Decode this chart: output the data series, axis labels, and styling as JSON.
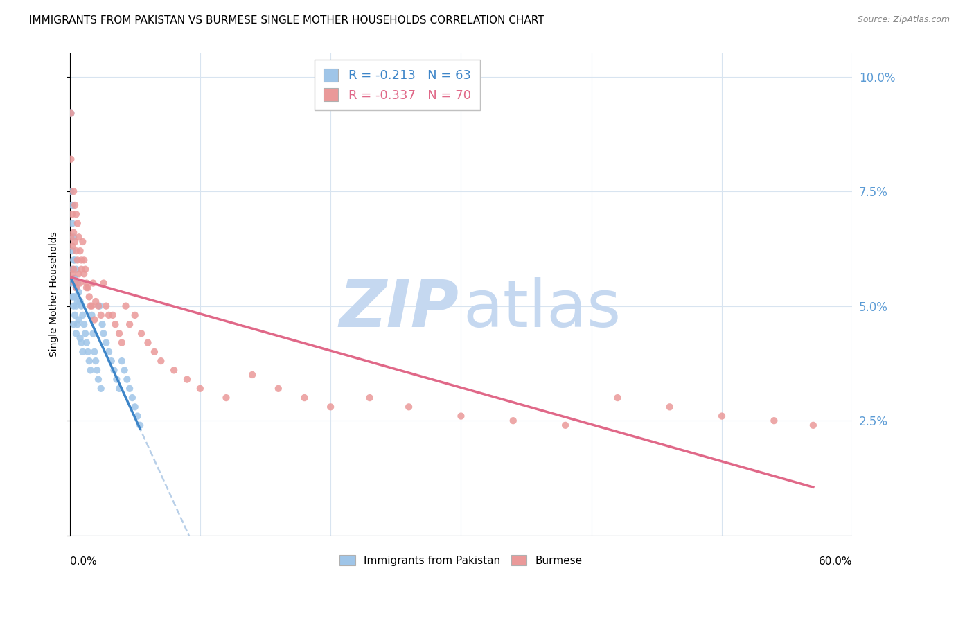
{
  "title": "IMMIGRANTS FROM PAKISTAN VS BURMESE SINGLE MOTHER HOUSEHOLDS CORRELATION CHART",
  "source": "Source: ZipAtlas.com",
  "ylabel": "Single Mother Households",
  "yticks": [
    0.0,
    0.025,
    0.05,
    0.075,
    0.1
  ],
  "ytick_labels": [
    "",
    "2.5%",
    "5.0%",
    "7.5%",
    "10.0%"
  ],
  "xlim": [
    0.0,
    0.6
  ],
  "ylim": [
    0.0,
    0.105
  ],
  "r1": -0.213,
  "n1": 63,
  "r2": -0.337,
  "n2": 70,
  "color_pakistan": "#9fc5e8",
  "color_burmese": "#ea9999",
  "color_pakistan_line": "#3d85c8",
  "color_burmese_line": "#e06888",
  "color_dashed": "#b8cfe8",
  "watermark_zip_color": "#c5d8f0",
  "watermark_atlas_color": "#c5d8f0",
  "pakistan_x": [
    0.001,
    0.001,
    0.001,
    0.002,
    0.002,
    0.002,
    0.002,
    0.002,
    0.003,
    0.003,
    0.003,
    0.003,
    0.003,
    0.003,
    0.004,
    0.004,
    0.004,
    0.004,
    0.005,
    0.005,
    0.005,
    0.005,
    0.006,
    0.006,
    0.006,
    0.007,
    0.007,
    0.008,
    0.008,
    0.009,
    0.009,
    0.01,
    0.01,
    0.011,
    0.012,
    0.013,
    0.014,
    0.015,
    0.016,
    0.017,
    0.018,
    0.019,
    0.02,
    0.021,
    0.022,
    0.023,
    0.024,
    0.025,
    0.026,
    0.028,
    0.03,
    0.032,
    0.034,
    0.036,
    0.038,
    0.04,
    0.042,
    0.044,
    0.046,
    0.048,
    0.05,
    0.052,
    0.054
  ],
  "pakistan_y": [
    0.092,
    0.075,
    0.055,
    0.072,
    0.068,
    0.062,
    0.058,
    0.052,
    0.065,
    0.06,
    0.056,
    0.052,
    0.05,
    0.046,
    0.06,
    0.056,
    0.052,
    0.048,
    0.058,
    0.054,
    0.05,
    0.044,
    0.055,
    0.051,
    0.046,
    0.053,
    0.047,
    0.051,
    0.043,
    0.05,
    0.042,
    0.048,
    0.04,
    0.046,
    0.044,
    0.042,
    0.04,
    0.038,
    0.036,
    0.048,
    0.044,
    0.04,
    0.038,
    0.036,
    0.034,
    0.05,
    0.032,
    0.046,
    0.044,
    0.042,
    0.04,
    0.038,
    0.036,
    0.034,
    0.032,
    0.038,
    0.036,
    0.034,
    0.032,
    0.03,
    0.028,
    0.026,
    0.024
  ],
  "burmese_x": [
    0.001,
    0.001,
    0.001,
    0.002,
    0.002,
    0.002,
    0.003,
    0.003,
    0.003,
    0.004,
    0.004,
    0.004,
    0.005,
    0.005,
    0.005,
    0.006,
    0.006,
    0.007,
    0.007,
    0.008,
    0.008,
    0.009,
    0.01,
    0.011,
    0.012,
    0.013,
    0.014,
    0.015,
    0.016,
    0.018,
    0.02,
    0.022,
    0.024,
    0.026,
    0.028,
    0.03,
    0.033,
    0.035,
    0.038,
    0.04,
    0.043,
    0.046,
    0.05,
    0.055,
    0.06,
    0.065,
    0.07,
    0.08,
    0.09,
    0.1,
    0.12,
    0.14,
    0.16,
    0.18,
    0.2,
    0.23,
    0.26,
    0.3,
    0.34,
    0.38,
    0.42,
    0.46,
    0.5,
    0.54,
    0.57,
    0.009,
    0.011,
    0.013,
    0.017,
    0.019
  ],
  "burmese_y": [
    0.082,
    0.092,
    0.065,
    0.07,
    0.063,
    0.057,
    0.075,
    0.066,
    0.058,
    0.072,
    0.064,
    0.055,
    0.07,
    0.062,
    0.054,
    0.068,
    0.06,
    0.065,
    0.057,
    0.062,
    0.055,
    0.058,
    0.064,
    0.06,
    0.058,
    0.055,
    0.054,
    0.052,
    0.05,
    0.055,
    0.051,
    0.05,
    0.048,
    0.055,
    0.05,
    0.048,
    0.048,
    0.046,
    0.044,
    0.042,
    0.05,
    0.046,
    0.048,
    0.044,
    0.042,
    0.04,
    0.038,
    0.036,
    0.034,
    0.032,
    0.03,
    0.035,
    0.032,
    0.03,
    0.028,
    0.03,
    0.028,
    0.026,
    0.025,
    0.024,
    0.03,
    0.028,
    0.026,
    0.025,
    0.024,
    0.06,
    0.057,
    0.054,
    0.05,
    0.047
  ]
}
